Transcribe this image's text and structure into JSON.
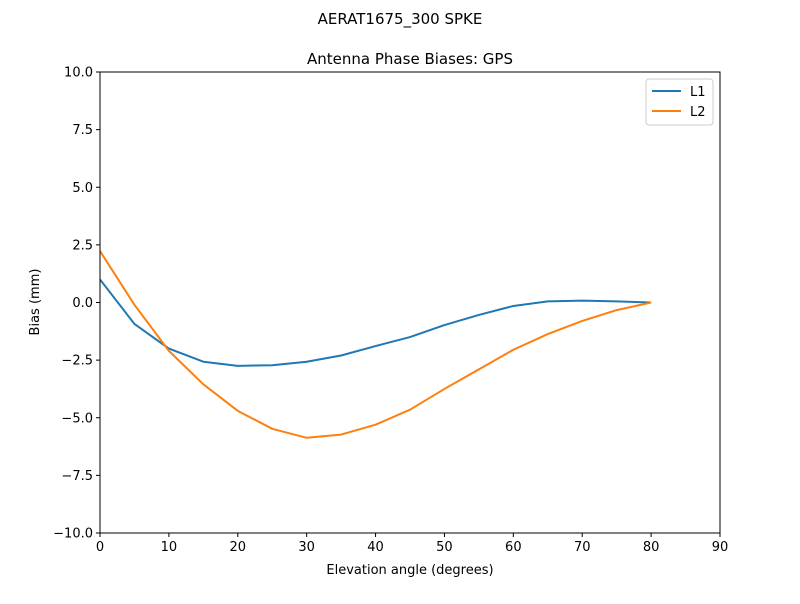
{
  "suptitle": "AERAT1675_300   SPKE",
  "chart_data": {
    "type": "line",
    "title": "Antenna Phase Biases: GPS",
    "xlabel": "Elevation angle (degrees)",
    "ylabel": "Bias (mm)",
    "xlim": [
      0,
      90
    ],
    "ylim": [
      -10,
      10
    ],
    "xticks": [
      "0",
      "10",
      "20",
      "30",
      "40",
      "50",
      "60",
      "70",
      "80",
      "90"
    ],
    "yticks": [
      "10.0",
      "7.5",
      "5.0",
      "2.5",
      "0.0",
      "−2.5",
      "−5.0",
      "−7.5",
      "−10.0"
    ],
    "grid": false,
    "legend": "top-right",
    "x": [
      0,
      5,
      10,
      15,
      20,
      25,
      30,
      35,
      40,
      45,
      50,
      55,
      60,
      65,
      70,
      75,
      80
    ],
    "series": [
      {
        "name": "L1",
        "color": "#1f77b4",
        "values": [
          1.0,
          -0.93,
          -2.0,
          -2.57,
          -2.75,
          -2.72,
          -2.57,
          -2.3,
          -1.89,
          -1.5,
          -0.98,
          -0.54,
          -0.15,
          0.05,
          0.08,
          0.05,
          0.0
        ]
      },
      {
        "name": "L2",
        "color": "#ff7f0e",
        "values": [
          2.23,
          -0.1,
          -2.1,
          -3.55,
          -4.7,
          -5.48,
          -5.87,
          -5.73,
          -5.3,
          -4.65,
          -3.75,
          -2.9,
          -2.05,
          -1.37,
          -0.8,
          -0.33,
          0.0
        ]
      }
    ]
  }
}
